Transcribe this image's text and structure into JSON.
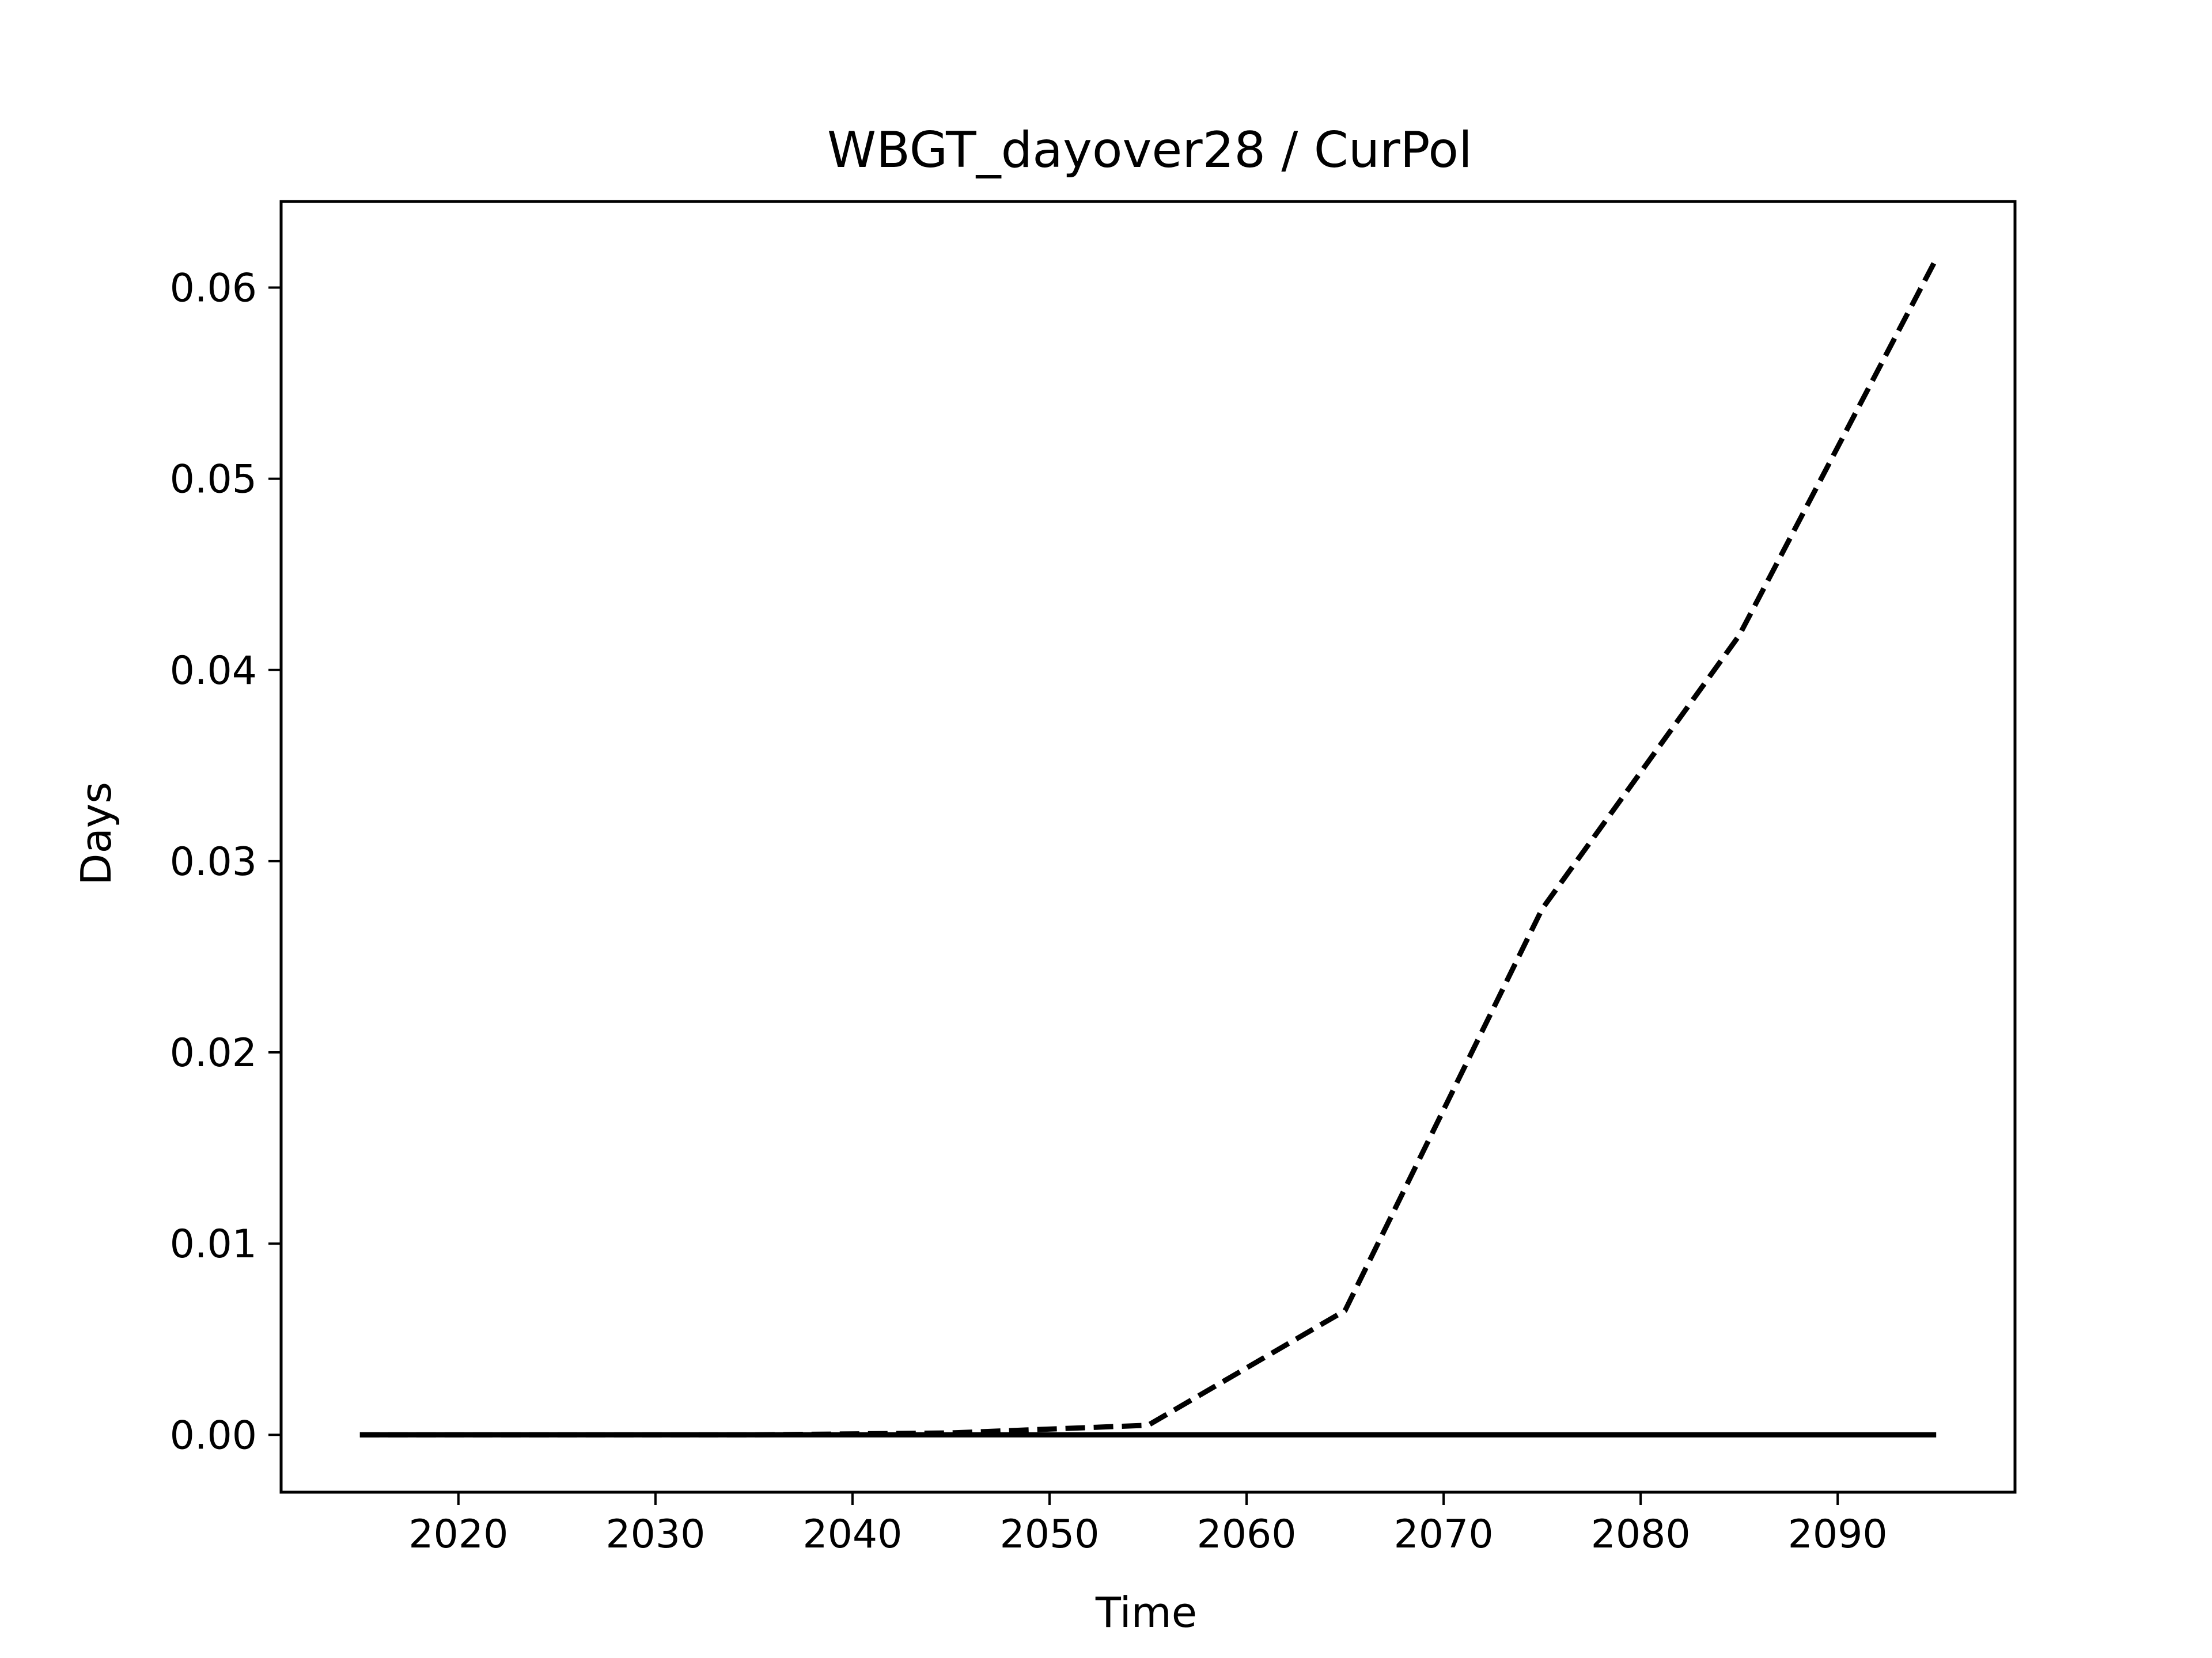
{
  "chart_data": {
    "type": "line",
    "title": "WBGT_dayover28 / CurPol",
    "xlabel": "Time",
    "ylabel": "Days",
    "xlim": [
      2011,
      2099
    ],
    "ylim": [
      -0.003,
      0.0645
    ],
    "x_ticks": [
      2020,
      2030,
      2040,
      2050,
      2060,
      2070,
      2080,
      2090
    ],
    "y_ticks": [
      0.0,
      0.01,
      0.02,
      0.03,
      0.04,
      0.05,
      0.06
    ],
    "y_tick_labels": [
      "0.00",
      "0.01",
      "0.02",
      "0.03",
      "0.04",
      "0.05",
      "0.06"
    ],
    "grid": false,
    "series": [
      {
        "style": "dashed",
        "color": "#000000",
        "x": [
          2015,
          2025,
          2035,
          2045,
          2055,
          2065,
          2075,
          2085,
          2095
        ],
        "y": [
          0.0,
          0.0,
          0.0,
          0.0001,
          0.0005,
          0.0065,
          0.0275,
          0.0418,
          0.0615
        ]
      },
      {
        "style": "solid",
        "color": "#000000",
        "x": [
          2015,
          2025,
          2035,
          2045,
          2055,
          2065,
          2075,
          2085,
          2095
        ],
        "y": [
          0.0,
          0.0,
          0.0,
          0.0,
          0.0,
          0.0,
          0.0,
          0.0,
          0.0
        ]
      }
    ]
  }
}
